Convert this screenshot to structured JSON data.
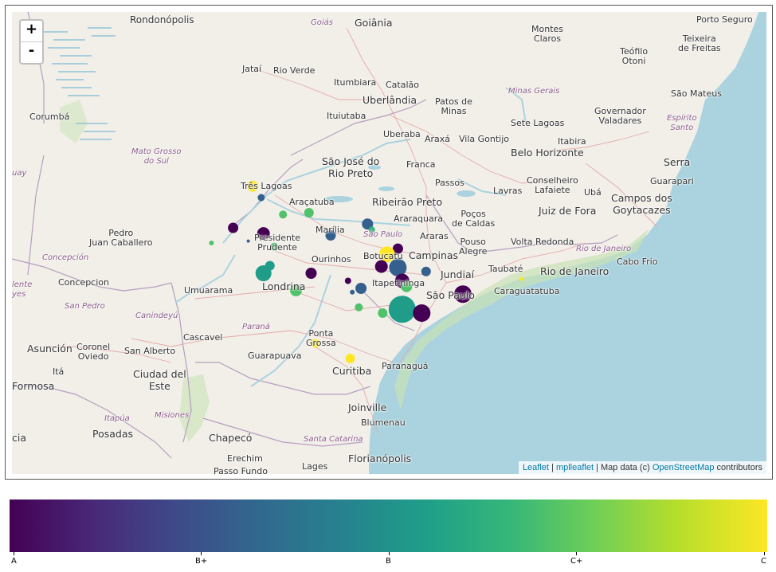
{
  "map": {
    "zoom_in_label": "+",
    "zoom_out_label": "-",
    "attribution": {
      "leaflet": "Leaflet",
      "separator1": " | ",
      "mplleaflet": "mplleaflet",
      "middle": " | Map data (c) ",
      "osm": "OpenStreetMap",
      "tail": " contributors"
    },
    "labels": {
      "rondonopolis": "Rondonópolis",
      "goias": "Goiás",
      "goiania": "Goiânia",
      "montes_claros": "Montes\nClaros",
      "porto_seguro": "Porto Seguro",
      "teixeira": "Teixeira\nde Freitas",
      "teofilo": "Teófilo\nOtoni",
      "jatai": "Jataí",
      "rio_verde": "Rio Verde",
      "itumbiara": "Itumbiara",
      "catalao": "Catalão",
      "uberlandia": "Uberlândia",
      "patos": "Patos de\nMinas",
      "minas_gerais": "Minas Gerais",
      "sao_mateus": "São Mateus",
      "governador": "Governador\nValadares",
      "espirito_santo": "Espírito\nSanto",
      "corumba": "Corumbá",
      "ituiutaba": "Ituiutaba",
      "sete_lagoas": "Sete Lagoas",
      "itabira": "Itabira",
      "uberaba": "Uberaba",
      "araxa": "Araxá",
      "vila_gontijo": "Vila Gontijo",
      "belo_horizonte": "Belo Horizonte",
      "mato_grosso": "Mato Grosso\ndo Sul",
      "sao_jose": "São José do\nRio Preto",
      "franca": "Franca",
      "serra": "Serra",
      "guarapari": "Guarapari",
      "tres_lagoas": "Três Lagoas",
      "passos": "Passos",
      "conselheiro": "Conselheiro\nLafaiete",
      "uba": "Ubá",
      "lavras": "Lavras",
      "aracatuba": "Araçatuba",
      "ribeirao": "Ribeirão Preto",
      "campos": "Campos dos\nGoytacazes",
      "juiz": "Juiz de Fora",
      "araraquara": "Araraquara",
      "pocos": "Poços\nde Caldas",
      "marilia": "Marília",
      "pedro_juan": "Pedro\nJuan Caballero",
      "sao_paulo_state": "São Paulo",
      "araras": "Araras",
      "volta_redonda": "Volta Redonda",
      "presidente": "Presidente\nPrudente",
      "pouso": "Pouso\nAlegre",
      "rio_state": "Rio de Janeiro",
      "cabo_frio": "Cabo Frio",
      "botucatu": "Botucatu",
      "ourinhos": "Ourinhos",
      "campinas": "Campinas",
      "taubate": "Taubaté",
      "concepcion_state": "Concepción",
      "jundiai": "Jundiaí",
      "rio_city": "Rio de Janeiro",
      "concepcion": "Concepcion",
      "itapetininga": "Itapetininga",
      "caraguatatuba": "Caraguatatuba",
      "londrina": "Londrina",
      "umuarama": "Umuarama",
      "sao_paulo_city": "São Paulo",
      "uay": "uay",
      "lente": "lente\nyes",
      "san_pedro": "San Pedro",
      "canindeyu": "Canindeyú",
      "parana": "Paraná",
      "cascavel": "Cascavel",
      "ponta_grossa": "Ponta\nGrossa",
      "asuncion": "Asunción",
      "coronel": "Coronel\nOviedo",
      "san_alberto": "San Alberto",
      "guarapuava": "Guarapuava",
      "ciudad_este": "Ciudad del\nEste",
      "ita": "Itá",
      "curitiba": "Curitiba",
      "paranagua": "Paranaguá",
      "formosa": "Formosa",
      "itapua": "Itapúa",
      "misiones": "Misiones",
      "joinville": "Joinville",
      "blumenau": "Blumenau",
      "cia": "cia",
      "posadas": "Posadas",
      "chapeco": "Chapecó",
      "santa_catarina": "Santa Catarina",
      "erechim": "Erechim",
      "florianopolis": "Florianópolis",
      "lages": "Lages",
      "passo_fundo": "Passo Fundo"
    },
    "markers": [
      {
        "lon": -50.45,
        "lat": -20.2,
        "grade": 1.0,
        "size": 7
      },
      {
        "lon": -50.25,
        "lat": -20.5,
        "grade": 0.3,
        "size": 4.5
      },
      {
        "lon": -49.75,
        "lat": -20.95,
        "grade": 0.72,
        "size": 5
      },
      {
        "lon": -49.15,
        "lat": -20.9,
        "grade": 0.72,
        "size": 6
      },
      {
        "lon": -47.8,
        "lat": -21.2,
        "grade": 0.3,
        "size": 7
      },
      {
        "lon": -47.7,
        "lat": -21.35,
        "grade": 0.65,
        "size": 4
      },
      {
        "lon": -50.9,
        "lat": -21.3,
        "grade": 0.0,
        "size": 6.5
      },
      {
        "lon": -50.2,
        "lat": -21.45,
        "grade": 0.0,
        "size": 8
      },
      {
        "lon": -48.65,
        "lat": -21.5,
        "grade": 0.3,
        "size": 6.5
      },
      {
        "lon": -51.4,
        "lat": -21.7,
        "grade": 0.72,
        "size": 3
      },
      {
        "lon": -50.55,
        "lat": -21.65,
        "grade": 0.3,
        "size": 2
      },
      {
        "lon": -49.95,
        "lat": -21.8,
        "grade": 0.72,
        "size": 5
      },
      {
        "lon": -47.1,
        "lat": -21.85,
        "grade": 0.0,
        "size": 6.5
      },
      {
        "lon": -47.35,
        "lat": -22.0,
        "grade": 1.0,
        "size": 10
      },
      {
        "lon": -47.48,
        "lat": -22.32,
        "grade": 0.0,
        "size": 8
      },
      {
        "lon": -47.1,
        "lat": -22.35,
        "grade": 0.3,
        "size": 11
      },
      {
        "lon": -46.45,
        "lat": -22.45,
        "grade": 0.3,
        "size": 6
      },
      {
        "lon": -50.05,
        "lat": -22.3,
        "grade": 0.55,
        "size": 6
      },
      {
        "lon": -50.2,
        "lat": -22.5,
        "grade": 0.55,
        "size": 10
      },
      {
        "lon": -49.1,
        "lat": -22.5,
        "grade": 0.0,
        "size": 7
      },
      {
        "lon": -48.25,
        "lat": -22.7,
        "grade": 0.0,
        "size": 4
      },
      {
        "lon": -47.0,
        "lat": -22.7,
        "grade": 0.0,
        "size": 9
      },
      {
        "lon": -46.9,
        "lat": -22.85,
        "grade": 0.72,
        "size": 7
      },
      {
        "lon": -47.95,
        "lat": -22.9,
        "grade": 0.3,
        "size": 7
      },
      {
        "lon": -48.15,
        "lat": -23.0,
        "grade": 0.3,
        "size": 3
      },
      {
        "lon": -49.45,
        "lat": -22.95,
        "grade": 0.72,
        "size": 7.5
      },
      {
        "lon": -45.6,
        "lat": -23.05,
        "grade": 0.0,
        "size": 11
      },
      {
        "lon": -44.25,
        "lat": -22.65,
        "grade": 1.0,
        "size": 2.5
      },
      {
        "lon": -48.0,
        "lat": -23.4,
        "grade": 0.72,
        "size": 5
      },
      {
        "lon": -47.0,
        "lat": -23.45,
        "grade": 0.55,
        "size": 17
      },
      {
        "lon": -46.55,
        "lat": -23.55,
        "grade": 0.0,
        "size": 11
      },
      {
        "lon": -47.45,
        "lat": -23.55,
        "grade": 0.72,
        "size": 6
      },
      {
        "lon": -49.0,
        "lat": -24.35,
        "grade": 1.0,
        "size": 5.5
      },
      {
        "lon": -48.2,
        "lat": -24.75,
        "grade": 1.0,
        "size": 6
      }
    ]
  },
  "colorbar": {
    "ticks": [
      "A",
      "B+",
      "B",
      "C+",
      "C"
    ]
  }
}
